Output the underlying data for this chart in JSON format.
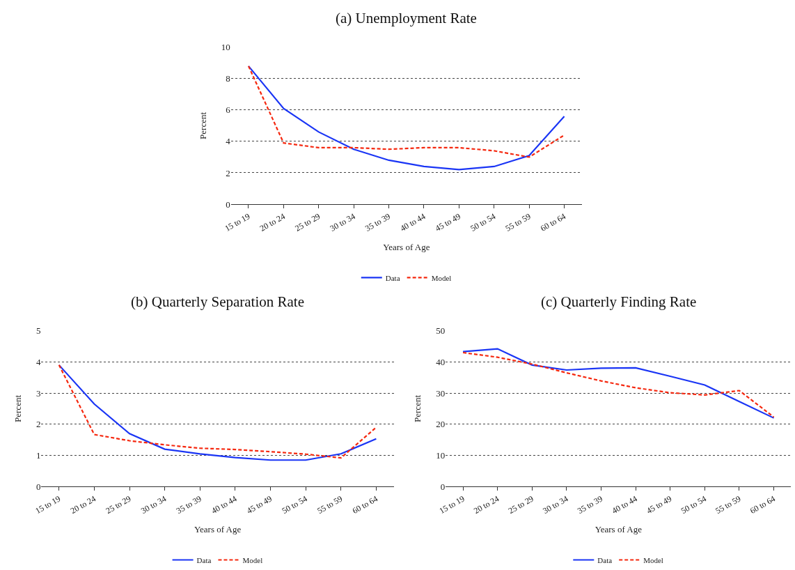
{
  "chart_data": [
    {
      "type": "line",
      "title": "(a) Unemployment Rate",
      "xlabel": "Years of Age",
      "ylabel": "Percent",
      "categories": [
        "15 to 19",
        "20 to 24",
        "25 to 29",
        "30 to 34",
        "35 to 39",
        "40 to 44",
        "45 to 49",
        "50 to 54",
        "55 to 59",
        "60 to 64"
      ],
      "ylim": [
        0,
        10
      ],
      "yticks": [
        0,
        2,
        4,
        6,
        8,
        10
      ],
      "grid": "y",
      "legend": "bottom",
      "series": [
        {
          "name": "Data",
          "color": "#1a35f5",
          "line_style": "solid",
          "values": [
            8.8,
            6.1,
            4.6,
            3.5,
            2.8,
            2.4,
            2.2,
            2.4,
            3.1,
            5.6
          ]
        },
        {
          "name": "Model",
          "color": "#f5280f",
          "line_style": "dashed",
          "values": [
            8.8,
            3.9,
            3.6,
            3.6,
            3.5,
            3.6,
            3.6,
            3.4,
            3.0,
            4.4
          ]
        }
      ]
    },
    {
      "type": "line",
      "title": "(b) Quarterly Separation Rate",
      "xlabel": "Years of Age",
      "ylabel": "Percent",
      "categories": [
        "15 to 19",
        "20 to 24",
        "25 to 29",
        "30 to 34",
        "35 to 39",
        "40 to 44",
        "45 to 49",
        "50 to 54",
        "55 to 59",
        "60 to 64"
      ],
      "ylim": [
        0,
        5
      ],
      "yticks": [
        0,
        1,
        2,
        3,
        4,
        5
      ],
      "grid": "y",
      "legend": "bottom",
      "series": [
        {
          "name": "Data",
          "color": "#1a35f5",
          "line_style": "solid",
          "values": [
            3.9,
            2.65,
            1.7,
            1.2,
            1.05,
            0.93,
            0.85,
            0.85,
            1.05,
            1.53
          ]
        },
        {
          "name": "Model",
          "color": "#f5280f",
          "line_style": "dashed",
          "values": [
            3.9,
            1.67,
            1.47,
            1.34,
            1.23,
            1.19,
            1.12,
            1.04,
            0.92,
            1.9
          ]
        }
      ]
    },
    {
      "type": "line",
      "title": "(c) Quarterly Finding Rate",
      "xlabel": "Years of Age",
      "ylabel": "Percent",
      "categories": [
        "15 to 19",
        "20 to 24",
        "25 to 29",
        "30 to 34",
        "35 to 39",
        "40 to 44",
        "45 to 49",
        "50 to 54",
        "55 to 59",
        "60 to 64"
      ],
      "ylim": [
        0,
        50
      ],
      "yticks": [
        0,
        10,
        20,
        30,
        40,
        50
      ],
      "grid": "y",
      "legend": "bottom",
      "series": [
        {
          "name": "Data",
          "color": "#1a35f5",
          "line_style": "solid",
          "values": [
            43.3,
            44.2,
            39.0,
            37.4,
            38.0,
            38.1,
            35.4,
            32.6,
            27.3,
            22.0
          ]
        },
        {
          "name": "Model",
          "color": "#f5280f",
          "line_style": "dashed",
          "values": [
            43.0,
            41.5,
            39.3,
            36.5,
            33.9,
            31.7,
            30.1,
            29.4,
            30.8,
            22.3
          ]
        }
      ]
    }
  ]
}
